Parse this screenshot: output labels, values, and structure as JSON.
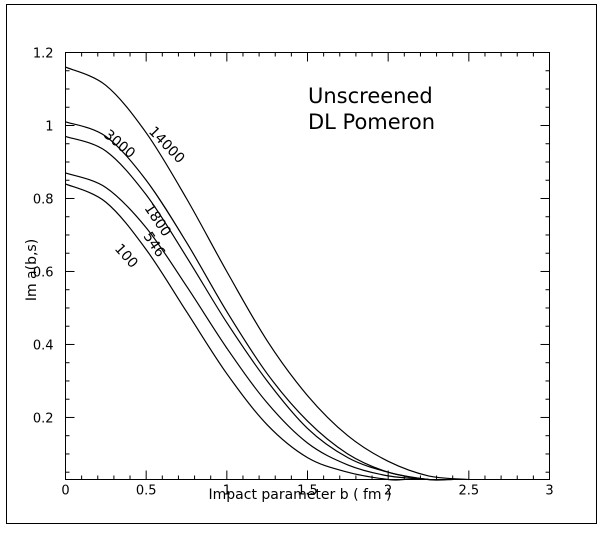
{
  "chart_data": {
    "type": "line",
    "annotation": [
      "Unscreened",
      "DL Pomeron"
    ],
    "xlabel": "Impact parameter  b  ( fm )",
    "ylabel": "Im a(b,s)",
    "xlim": [
      0,
      3
    ],
    "ylim": [
      0.03,
      1.2
    ],
    "x_ticks": [
      0,
      0.5,
      1,
      1.5,
      2,
      2.5,
      3
    ],
    "x_tick_labels": [
      "0",
      "0.5",
      "1",
      "1.5",
      "2",
      "2.5",
      "3"
    ],
    "y_ticks": [
      0.2,
      0.4,
      0.6,
      0.8,
      1.0,
      1.2
    ],
    "y_tick_labels": [
      "0.2",
      "0.4",
      "0.6",
      "0.8",
      "1",
      "1.2"
    ],
    "grid": false,
    "series": [
      {
        "name": "14000",
        "points": [
          [
            0,
            1.16
          ],
          [
            0.25,
            1.11
          ],
          [
            0.5,
            0.98
          ],
          [
            0.75,
            0.8
          ],
          [
            1.0,
            0.6
          ],
          [
            1.25,
            0.41
          ],
          [
            1.5,
            0.26
          ],
          [
            1.75,
            0.15
          ],
          [
            2.0,
            0.08
          ],
          [
            2.25,
            0.04
          ],
          [
            2.5,
            0.03
          ]
        ]
      },
      {
        "name": "3000",
        "points": [
          [
            0,
            1.01
          ],
          [
            0.25,
            0.97
          ],
          [
            0.5,
            0.85
          ],
          [
            0.75,
            0.68
          ],
          [
            1.0,
            0.49
          ],
          [
            1.25,
            0.32
          ],
          [
            1.5,
            0.19
          ],
          [
            1.75,
            0.1
          ],
          [
            2.0,
            0.05
          ],
          [
            2.25,
            0.03
          ],
          [
            2.4,
            0.03
          ]
        ]
      },
      {
        "name": "1800",
        "points": [
          [
            0,
            0.97
          ],
          [
            0.25,
            0.93
          ],
          [
            0.5,
            0.81
          ],
          [
            0.75,
            0.64
          ],
          [
            1.0,
            0.46
          ],
          [
            1.25,
            0.3
          ],
          [
            1.5,
            0.17
          ],
          [
            1.75,
            0.09
          ],
          [
            2.0,
            0.05
          ],
          [
            2.25,
            0.03
          ],
          [
            2.35,
            0.03
          ]
        ]
      },
      {
        "name": "546",
        "points": [
          [
            0,
            0.87
          ],
          [
            0.25,
            0.83
          ],
          [
            0.5,
            0.72
          ],
          [
            0.75,
            0.56
          ],
          [
            1.0,
            0.39
          ],
          [
            1.25,
            0.24
          ],
          [
            1.5,
            0.13
          ],
          [
            1.75,
            0.07
          ],
          [
            2.0,
            0.04
          ],
          [
            2.25,
            0.03
          ]
        ]
      },
      {
        "name": "100",
        "points": [
          [
            0,
            0.84
          ],
          [
            0.25,
            0.79
          ],
          [
            0.5,
            0.66
          ],
          [
            0.75,
            0.49
          ],
          [
            1.0,
            0.32
          ],
          [
            1.25,
            0.18
          ],
          [
            1.5,
            0.09
          ],
          [
            1.75,
            0.05
          ],
          [
            2.0,
            0.03
          ],
          [
            2.1,
            0.03
          ]
        ]
      }
    ],
    "curve_labels": [
      {
        "text": "14000",
        "series": "14000"
      },
      {
        "text": "3000",
        "series": "3000"
      },
      {
        "text": "1800",
        "series": "1800"
      },
      {
        "text": "546",
        "series": "546"
      },
      {
        "text": "100",
        "series": "100"
      }
    ]
  }
}
